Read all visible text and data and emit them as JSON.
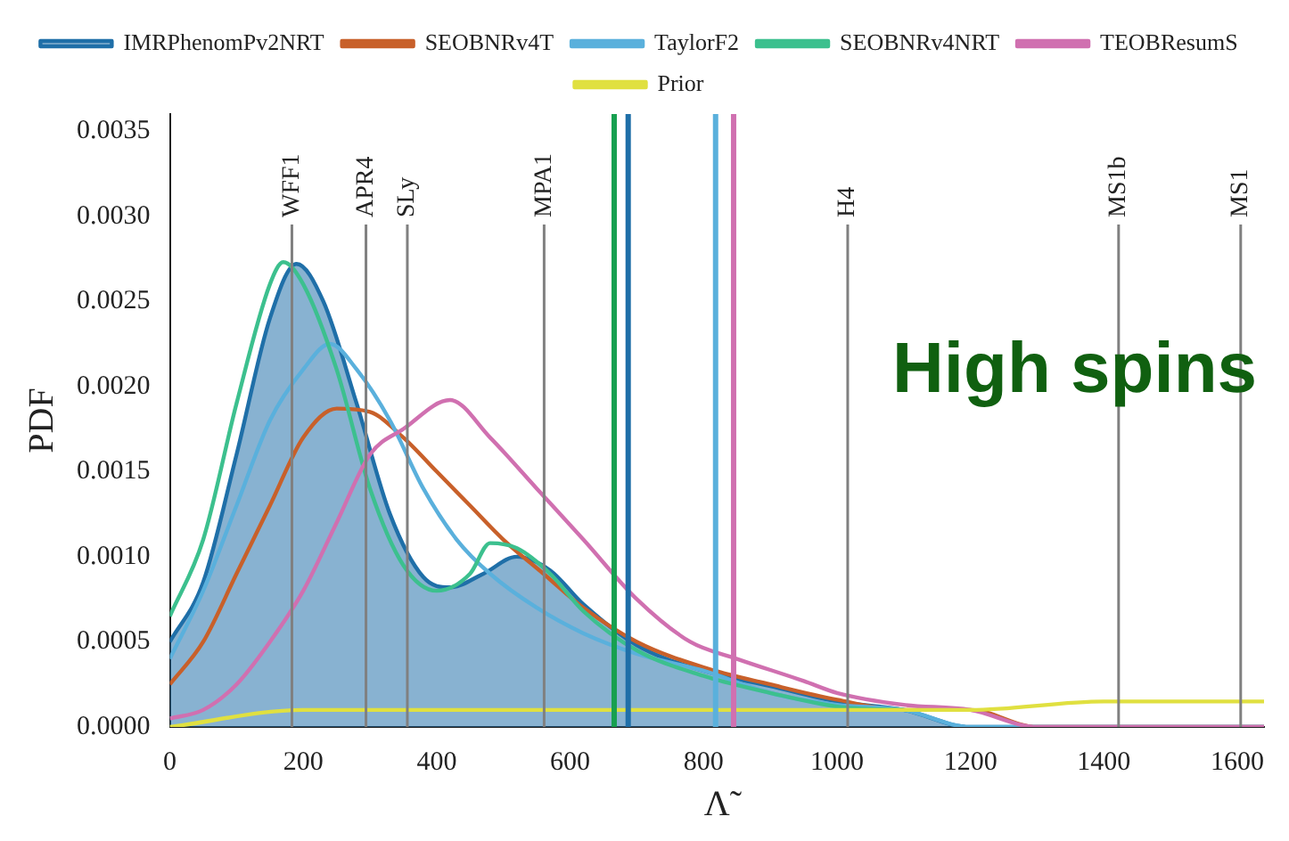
{
  "chart_data": {
    "type": "line",
    "xlabel": "Λ̃",
    "ylabel": "PDF",
    "xlim": [
      0,
      1640
    ],
    "ylim": [
      0,
      0.0036
    ],
    "xticks": [
      0,
      200,
      400,
      600,
      800,
      1000,
      1200,
      1400,
      1600
    ],
    "yticks": [
      {
        "value": 0,
        "label": "0.0000"
      },
      {
        "value": 0.0005,
        "label": "0.0005"
      },
      {
        "value": 0.001,
        "label": "0.0010"
      },
      {
        "value": 0.0015,
        "label": "0.0015"
      },
      {
        "value": 0.002,
        "label": "0.0020"
      },
      {
        "value": 0.0025,
        "label": "0.0025"
      },
      {
        "value": 0.003,
        "label": "0.0030"
      },
      {
        "value": 0.0035,
        "label": "0.0035"
      }
    ],
    "grid": false,
    "legend": "top",
    "line_style": "solid",
    "series": [
      {
        "name": "IMRPhenomPv2NRT",
        "type": "area",
        "color": "#1f6fa8",
        "x": [
          0,
          50,
          100,
          150,
          190,
          230,
          280,
          330,
          380,
          420,
          470,
          520,
          570,
          620,
          700,
          800,
          900,
          1000,
          1100,
          1200,
          1300,
          1400,
          1640
        ],
        "values": [
          0.0005,
          0.00085,
          0.0016,
          0.0024,
          0.00272,
          0.0025,
          0.0019,
          0.00125,
          0.00088,
          0.00082,
          0.0009,
          0.001,
          0.00092,
          0.00072,
          0.00048,
          0.00033,
          0.00024,
          0.00015,
          0.0001,
          0,
          0,
          0,
          0
        ]
      },
      {
        "name": "SEOBNRv4T",
        "color": "#c8602a",
        "x": [
          0,
          50,
          100,
          150,
          200,
          250,
          300,
          350,
          400,
          450,
          500,
          560,
          620,
          700,
          800,
          900,
          1000,
          1100,
          1200,
          1300,
          1400,
          1640
        ],
        "values": [
          0.00025,
          0.0005,
          0.0009,
          0.0013,
          0.0017,
          0.00187,
          0.00185,
          0.0017,
          0.0015,
          0.0013,
          0.0011,
          0.0009,
          0.0007,
          0.0005,
          0.00035,
          0.00025,
          0.00016,
          0.0001,
          0.0001,
          0,
          0,
          0
        ]
      },
      {
        "name": "TaylorF2",
        "color": "#5ab0dc",
        "x": [
          0,
          50,
          100,
          150,
          200,
          240,
          280,
          330,
          380,
          430,
          480,
          550,
          620,
          700,
          800,
          900,
          1000,
          1100,
          1200,
          1300,
          1640
        ],
        "values": [
          0.0004,
          0.0008,
          0.0013,
          0.0018,
          0.0021,
          0.00225,
          0.0021,
          0.0018,
          0.0014,
          0.0011,
          0.0009,
          0.0007,
          0.00055,
          0.00043,
          0.00033,
          0.0002,
          0.00013,
          0.0001,
          0,
          0,
          0
        ]
      },
      {
        "name": "SEOBNRv4NRT",
        "color": "#3cc08e",
        "x": [
          0,
          50,
          100,
          150,
          170,
          200,
          250,
          300,
          350,
          400,
          450,
          480,
          520,
          570,
          620,
          700,
          800,
          900,
          1000,
          1100
        ],
        "values": [
          0.00065,
          0.0011,
          0.0019,
          0.0026,
          0.00273,
          0.0026,
          0.0021,
          0.0014,
          0.00095,
          0.0008,
          0.0009,
          0.00108,
          0.00105,
          0.0009,
          0.00068,
          0.00045,
          0.0003,
          0.0002,
          0.00012,
          0.0001
        ]
      },
      {
        "name": "TEOBResumS",
        "color": "#d070b0",
        "x": [
          0,
          50,
          100,
          150,
          200,
          250,
          300,
          350,
          420,
          480,
          550,
          620,
          700,
          780,
          850,
          950,
          1000,
          1100,
          1200,
          1300,
          1400,
          1640
        ],
        "values": [
          5e-05,
          0.0001,
          0.00025,
          0.0005,
          0.0008,
          0.0012,
          0.0016,
          0.00175,
          0.00192,
          0.0017,
          0.0014,
          0.0011,
          0.00075,
          0.0005,
          0.0004,
          0.00027,
          0.0002,
          0.00013,
          0.0001,
          0,
          0,
          0
        ]
      },
      {
        "name": "Prior",
        "color": "#e0e040",
        "x": [
          0,
          200,
          400,
          600,
          800,
          1000,
          1200,
          1400,
          1640
        ],
        "values": [
          0,
          0.0001,
          0.0001,
          0.0001,
          0.0001,
          0.0001,
          0.0001,
          0.00015,
          0.00015
        ]
      }
    ],
    "ref_lines": [
      {
        "axis": "x",
        "value": 183,
        "label": "WFF1",
        "color": "#808080"
      },
      {
        "axis": "x",
        "value": 294,
        "label": "APR4",
        "color": "#808080"
      },
      {
        "axis": "x",
        "value": 356,
        "label": "SLy",
        "color": "#808080"
      },
      {
        "axis": "x",
        "value": 561,
        "label": "MPA1",
        "color": "#808080"
      },
      {
        "axis": "x",
        "value": 1016,
        "label": "H4",
        "color": "#808080"
      },
      {
        "axis": "x",
        "value": 1422,
        "label": "MS1b",
        "color": "#808080"
      },
      {
        "axis": "x",
        "value": 1605,
        "label": "MS1",
        "color": "#808080"
      },
      {
        "axis": "x",
        "value": 666,
        "color": "#17a050"
      },
      {
        "axis": "x",
        "value": 687,
        "color": "#1f6fa8"
      },
      {
        "axis": "x",
        "value": 818,
        "color": "#5ab0dc"
      },
      {
        "axis": "x",
        "value": 845,
        "color": "#d070b0"
      }
    ],
    "annotations": [
      "High spins"
    ]
  }
}
